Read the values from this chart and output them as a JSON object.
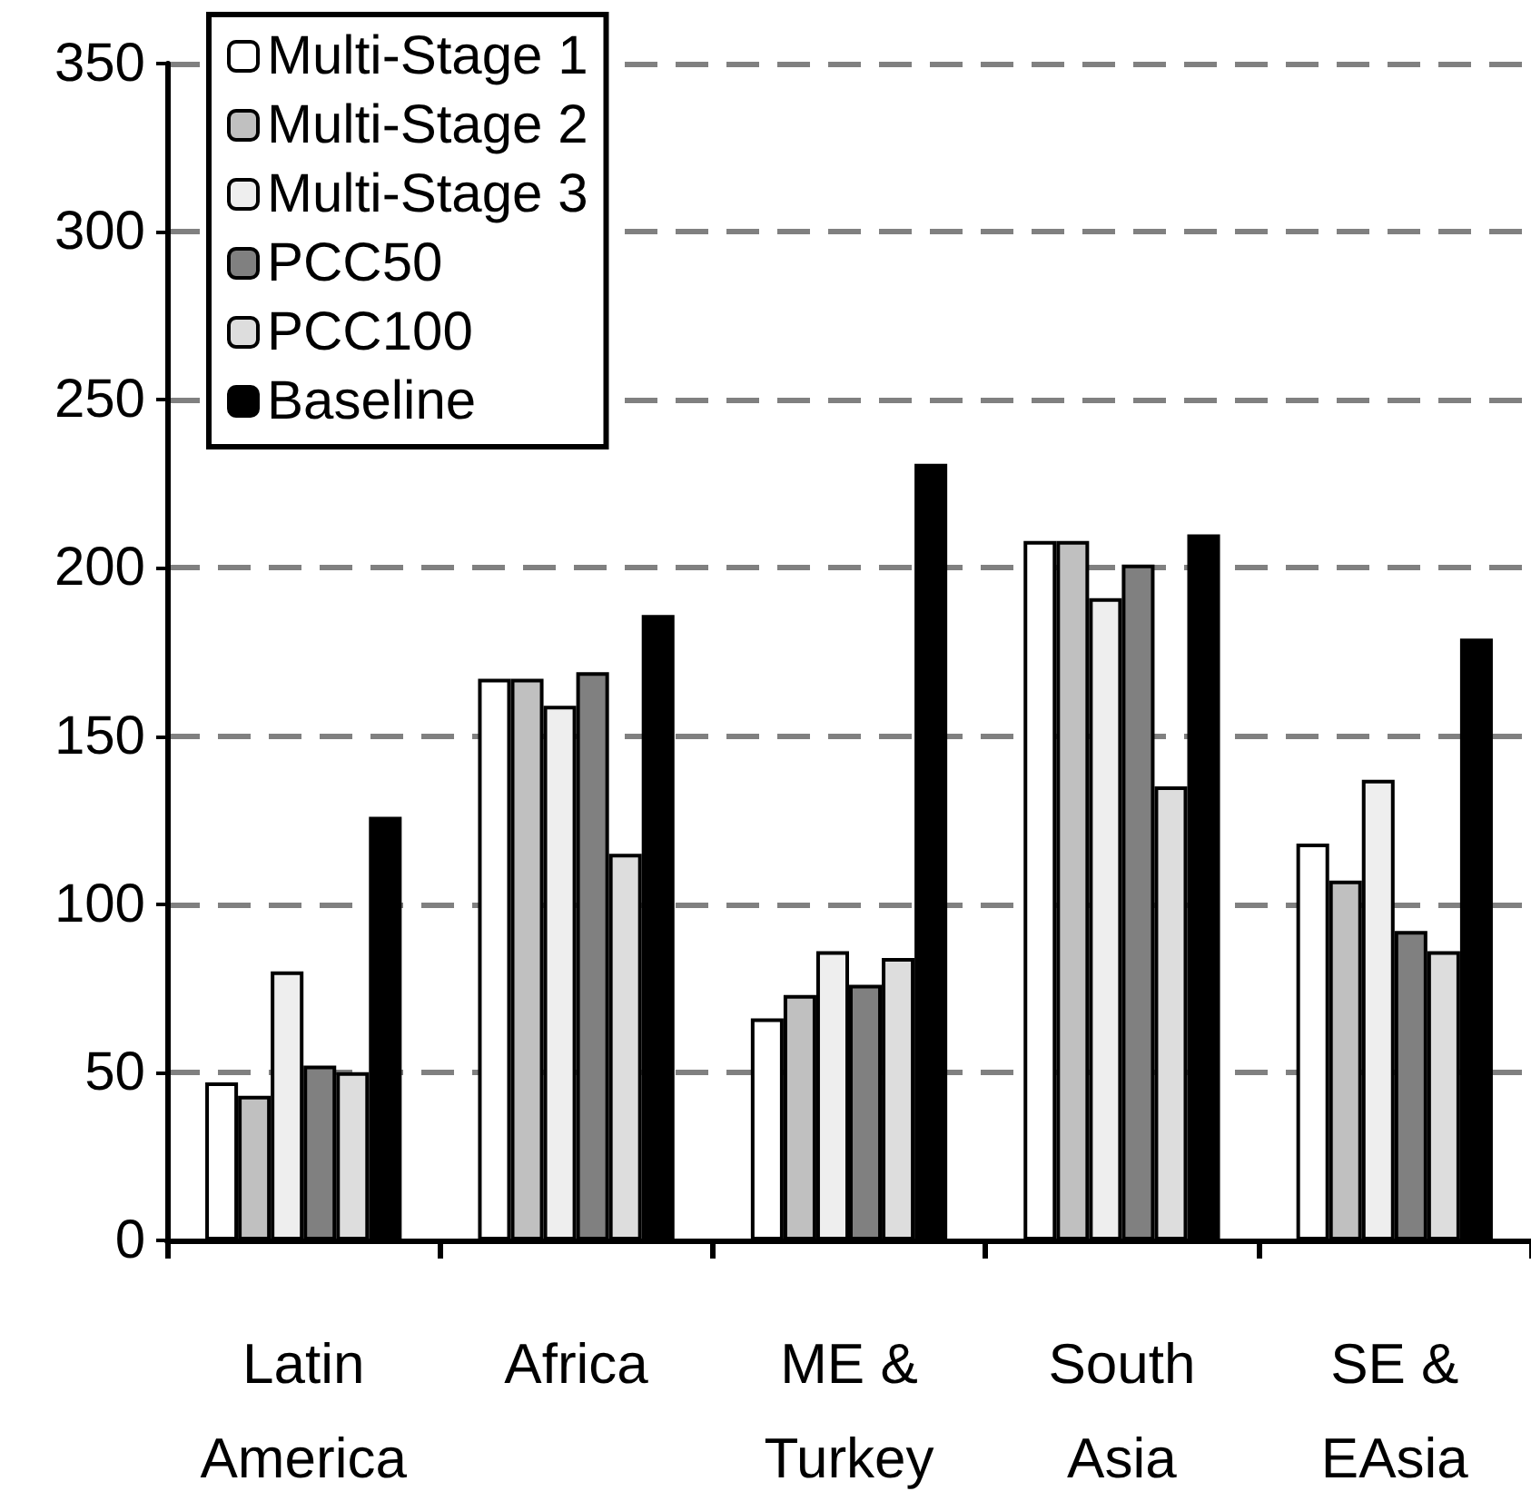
{
  "chart_data": {
    "type": "bar",
    "categories": [
      "Latin\nAmerica",
      "Africa",
      "ME &\nTurkey",
      "South\nAsia",
      "SE &\nEAsia"
    ],
    "series": [
      {
        "name": "Multi-Stage 1",
        "color": "#ffffff",
        "values": [
          47,
          167,
          66,
          208,
          118
        ]
      },
      {
        "name": "Multi-Stage 2",
        "color": "#c0c0c0",
        "values": [
          43,
          167,
          73,
          208,
          107
        ]
      },
      {
        "name": "Multi-Stage 3",
        "color": "#eeeeee",
        "values": [
          80,
          159,
          86,
          191,
          137
        ]
      },
      {
        "name": "PCC50",
        "color": "#808080",
        "values": [
          52,
          169,
          76,
          201,
          92
        ]
      },
      {
        "name": "PCC100",
        "color": "#dddddd",
        "values": [
          50,
          115,
          84,
          135,
          86
        ]
      },
      {
        "name": "Baseline",
        "color": "#000000",
        "values": [
          126,
          186,
          231,
          210,
          179
        ]
      }
    ],
    "ylim": [
      0,
      350
    ],
    "yticks": [
      0,
      50,
      100,
      150,
      200,
      250,
      300,
      350
    ],
    "grid": "y",
    "legend": "top left"
  }
}
